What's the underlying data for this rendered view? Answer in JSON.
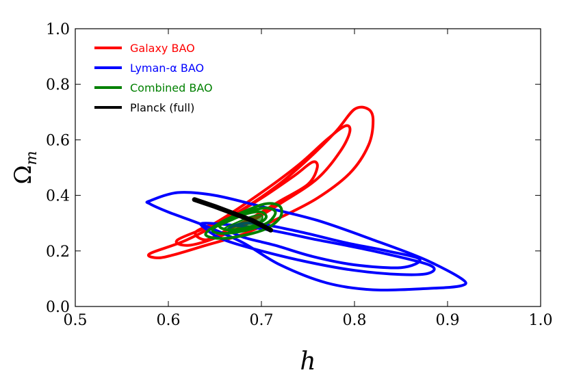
{
  "chart_data": {
    "type": "contour",
    "xlabel": "h",
    "ylabel_base": "Ω",
    "ylabel_sub": "m",
    "xlim": [
      0.5,
      1.0
    ],
    "ylim": [
      0.0,
      1.0
    ],
    "xticks": [
      "0.5",
      "0.6",
      "0.7",
      "0.8",
      "0.9",
      "1.0"
    ],
    "yticks": [
      "0.0",
      "0.2",
      "0.4",
      "0.6",
      "0.8",
      "1.0"
    ],
    "grid": false,
    "legend_position": "top-left",
    "legend": [
      {
        "label": "Galaxy BAO",
        "color": "#ff0000"
      },
      {
        "label": "Lyman-α BAO",
        "color": "#0000ff"
      },
      {
        "label": "Combined BAO",
        "color": "#008000"
      },
      {
        "label": "Planck (full)",
        "color": "#000000"
      }
    ],
    "series": [
      {
        "color": "#ff0000",
        "contours": [
          [
            [
              0.63,
              0.27
            ],
            [
              0.665,
              0.32
            ],
            [
              0.7,
              0.39
            ],
            [
              0.735,
              0.47
            ],
            [
              0.755,
              0.52
            ],
            [
              0.76,
              0.5
            ],
            [
              0.75,
              0.44
            ],
            [
              0.72,
              0.38
            ],
            [
              0.69,
              0.32
            ],
            [
              0.66,
              0.27
            ],
            [
              0.64,
              0.24
            ],
            [
              0.63,
              0.27
            ]
          ],
          [
            [
              0.61,
              0.24
            ],
            [
              0.65,
              0.3
            ],
            [
              0.7,
              0.41
            ],
            [
              0.74,
              0.51
            ],
            [
              0.77,
              0.6
            ],
            [
              0.79,
              0.65
            ],
            [
              0.795,
              0.63
            ],
            [
              0.785,
              0.56
            ],
            [
              0.76,
              0.46
            ],
            [
              0.72,
              0.37
            ],
            [
              0.68,
              0.29
            ],
            [
              0.645,
              0.24
            ],
            [
              0.62,
              0.22
            ],
            [
              0.61,
              0.24
            ]
          ],
          [
            [
              0.58,
              0.19
            ],
            [
              0.62,
              0.24
            ],
            [
              0.67,
              0.33
            ],
            [
              0.715,
              0.43
            ],
            [
              0.75,
              0.53
            ],
            [
              0.78,
              0.63
            ],
            [
              0.8,
              0.71
            ],
            [
              0.815,
              0.71
            ],
            [
              0.82,
              0.67
            ],
            [
              0.815,
              0.58
            ],
            [
              0.795,
              0.48
            ],
            [
              0.76,
              0.39
            ],
            [
              0.72,
              0.32
            ],
            [
              0.68,
              0.26
            ],
            [
              0.64,
              0.22
            ],
            [
              0.61,
              0.19
            ],
            [
              0.59,
              0.175
            ],
            [
              0.58,
              0.19
            ]
          ]
        ]
      },
      {
        "color": "#0000ff",
        "contours": [
          [
            [
              0.69,
              0.3
            ],
            [
              0.74,
              0.27
            ],
            [
              0.79,
              0.23
            ],
            [
              0.835,
              0.2
            ],
            [
              0.87,
              0.17
            ],
            [
              0.85,
              0.14
            ],
            [
              0.8,
              0.15
            ],
            [
              0.755,
              0.18
            ],
            [
              0.715,
              0.22
            ],
            [
              0.68,
              0.25
            ],
            [
              0.665,
              0.28
            ],
            [
              0.69,
              0.3
            ]
          ],
          [
            [
              0.64,
              0.3
            ],
            [
              0.7,
              0.28
            ],
            [
              0.76,
              0.24
            ],
            [
              0.82,
              0.2
            ],
            [
              0.88,
              0.15
            ],
            [
              0.88,
              0.12
            ],
            [
              0.85,
              0.115
            ],
            [
              0.8,
              0.13
            ],
            [
              0.75,
              0.16
            ],
            [
              0.7,
              0.2
            ],
            [
              0.66,
              0.24
            ],
            [
              0.64,
              0.28
            ],
            [
              0.64,
              0.3
            ]
          ],
          [
            [
              0.58,
              0.38
            ],
            [
              0.61,
              0.41
            ],
            [
              0.65,
              0.4
            ],
            [
              0.7,
              0.36
            ],
            [
              0.76,
              0.31
            ],
            [
              0.82,
              0.24
            ],
            [
              0.875,
              0.17
            ],
            [
              0.915,
              0.1
            ],
            [
              0.915,
              0.075
            ],
            [
              0.88,
              0.065
            ],
            [
              0.82,
              0.06
            ],
            [
              0.77,
              0.085
            ],
            [
              0.72,
              0.15
            ],
            [
              0.68,
              0.23
            ],
            [
              0.64,
              0.29
            ],
            [
              0.6,
              0.34
            ],
            [
              0.58,
              0.37
            ],
            [
              0.58,
              0.38
            ]
          ]
        ]
      },
      {
        "color": "#008000",
        "contours": [
          [
            [
              0.655,
              0.29
            ],
            [
              0.67,
              0.315
            ],
            [
              0.685,
              0.335
            ],
            [
              0.7,
              0.34
            ],
            [
              0.705,
              0.32
            ],
            [
              0.695,
              0.295
            ],
            [
              0.68,
              0.28
            ],
            [
              0.665,
              0.275
            ],
            [
              0.655,
              0.29
            ]
          ],
          [
            [
              0.648,
              0.28
            ],
            [
              0.665,
              0.31
            ],
            [
              0.685,
              0.34
            ],
            [
              0.705,
              0.355
            ],
            [
              0.715,
              0.34
            ],
            [
              0.708,
              0.305
            ],
            [
              0.69,
              0.28
            ],
            [
              0.668,
              0.265
            ],
            [
              0.652,
              0.265
            ],
            [
              0.648,
              0.28
            ]
          ],
          [
            [
              0.64,
              0.26
            ],
            [
              0.655,
              0.3
            ],
            [
              0.68,
              0.34
            ],
            [
              0.705,
              0.37
            ],
            [
              0.72,
              0.36
            ],
            [
              0.72,
              0.32
            ],
            [
              0.705,
              0.28
            ],
            [
              0.68,
              0.255
            ],
            [
              0.655,
              0.245
            ],
            [
              0.64,
              0.26
            ]
          ]
        ],
        "filled": [
          [
            0.66,
            0.28
          ],
          [
            0.675,
            0.305
          ],
          [
            0.69,
            0.325
          ],
          [
            0.7,
            0.33
          ],
          [
            0.7,
            0.31
          ],
          [
            0.69,
            0.29
          ],
          [
            0.675,
            0.28
          ],
          [
            0.66,
            0.28
          ]
        ]
      },
      {
        "color": "#000000",
        "line": [
          [
            0.628,
            0.385
          ],
          [
            0.65,
            0.36
          ],
          [
            0.67,
            0.335
          ],
          [
            0.69,
            0.31
          ],
          [
            0.71,
            0.275
          ]
        ]
      }
    ]
  }
}
